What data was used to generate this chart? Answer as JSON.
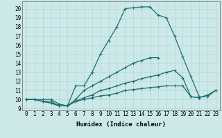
{
  "title": "",
  "xlabel": "Humidex (Indice chaleur)",
  "xlim": [
    -0.5,
    23.5
  ],
  "ylim": [
    8.8,
    20.8
  ],
  "xtick_labels": [
    "0",
    "1",
    "2",
    "3",
    "4",
    "5",
    "6",
    "7",
    "8",
    "9",
    "10",
    "11",
    "12",
    "13",
    "14",
    "15",
    "16",
    "17",
    "18",
    "19",
    "20",
    "21",
    "22",
    "23"
  ],
  "ytick_vals": [
    9,
    10,
    11,
    12,
    13,
    14,
    15,
    16,
    17,
    18,
    19,
    20
  ],
  "ytick_labels": [
    "9",
    "10",
    "11",
    "12",
    "13",
    "14",
    "15",
    "16",
    "17",
    "18",
    "19",
    "20"
  ],
  "background_color": "#cce8e8",
  "line_color": "#1a6e6a",
  "lines": [
    [
      10,
      10,
      10,
      10,
      9.5,
      9.3,
      11.5,
      11.5,
      13,
      15,
      16.5,
      18,
      20,
      20.1,
      20.2,
      20.2,
      19.3,
      19,
      17,
      14.7,
      12.5,
      10.3,
      10.3,
      11
    ],
    [
      10,
      10,
      9.8,
      9.6,
      9.3,
      9.3,
      10,
      11,
      11.5,
      12,
      12.5,
      13,
      13.5,
      14,
      14.3,
      14.6,
      14.6,
      null,
      null,
      null,
      null,
      null,
      null,
      null
    ],
    [
      10,
      10,
      9.8,
      9.6,
      9.3,
      9.3,
      9.8,
      10.2,
      10.5,
      11,
      11.2,
      11.5,
      11.8,
      12,
      12.3,
      12.5,
      12.7,
      13,
      13.2,
      12.4,
      10.3,
      10.2,
      null,
      null
    ],
    [
      10,
      10,
      9.8,
      9.8,
      9.3,
      9.3,
      9.8,
      10.0,
      10.2,
      10.4,
      10.5,
      10.7,
      11.0,
      11.1,
      11.2,
      11.3,
      11.4,
      11.5,
      11.5,
      11.5,
      10.3,
      10.2,
      10.5,
      11
    ]
  ],
  "line_width": 0.9,
  "marker": "+",
  "markersize": 3.5,
  "markeredgewidth": 0.8,
  "grid_color": "#aad4d4",
  "tick_fontsize": 5.5,
  "xlabel_fontsize": 6.5
}
